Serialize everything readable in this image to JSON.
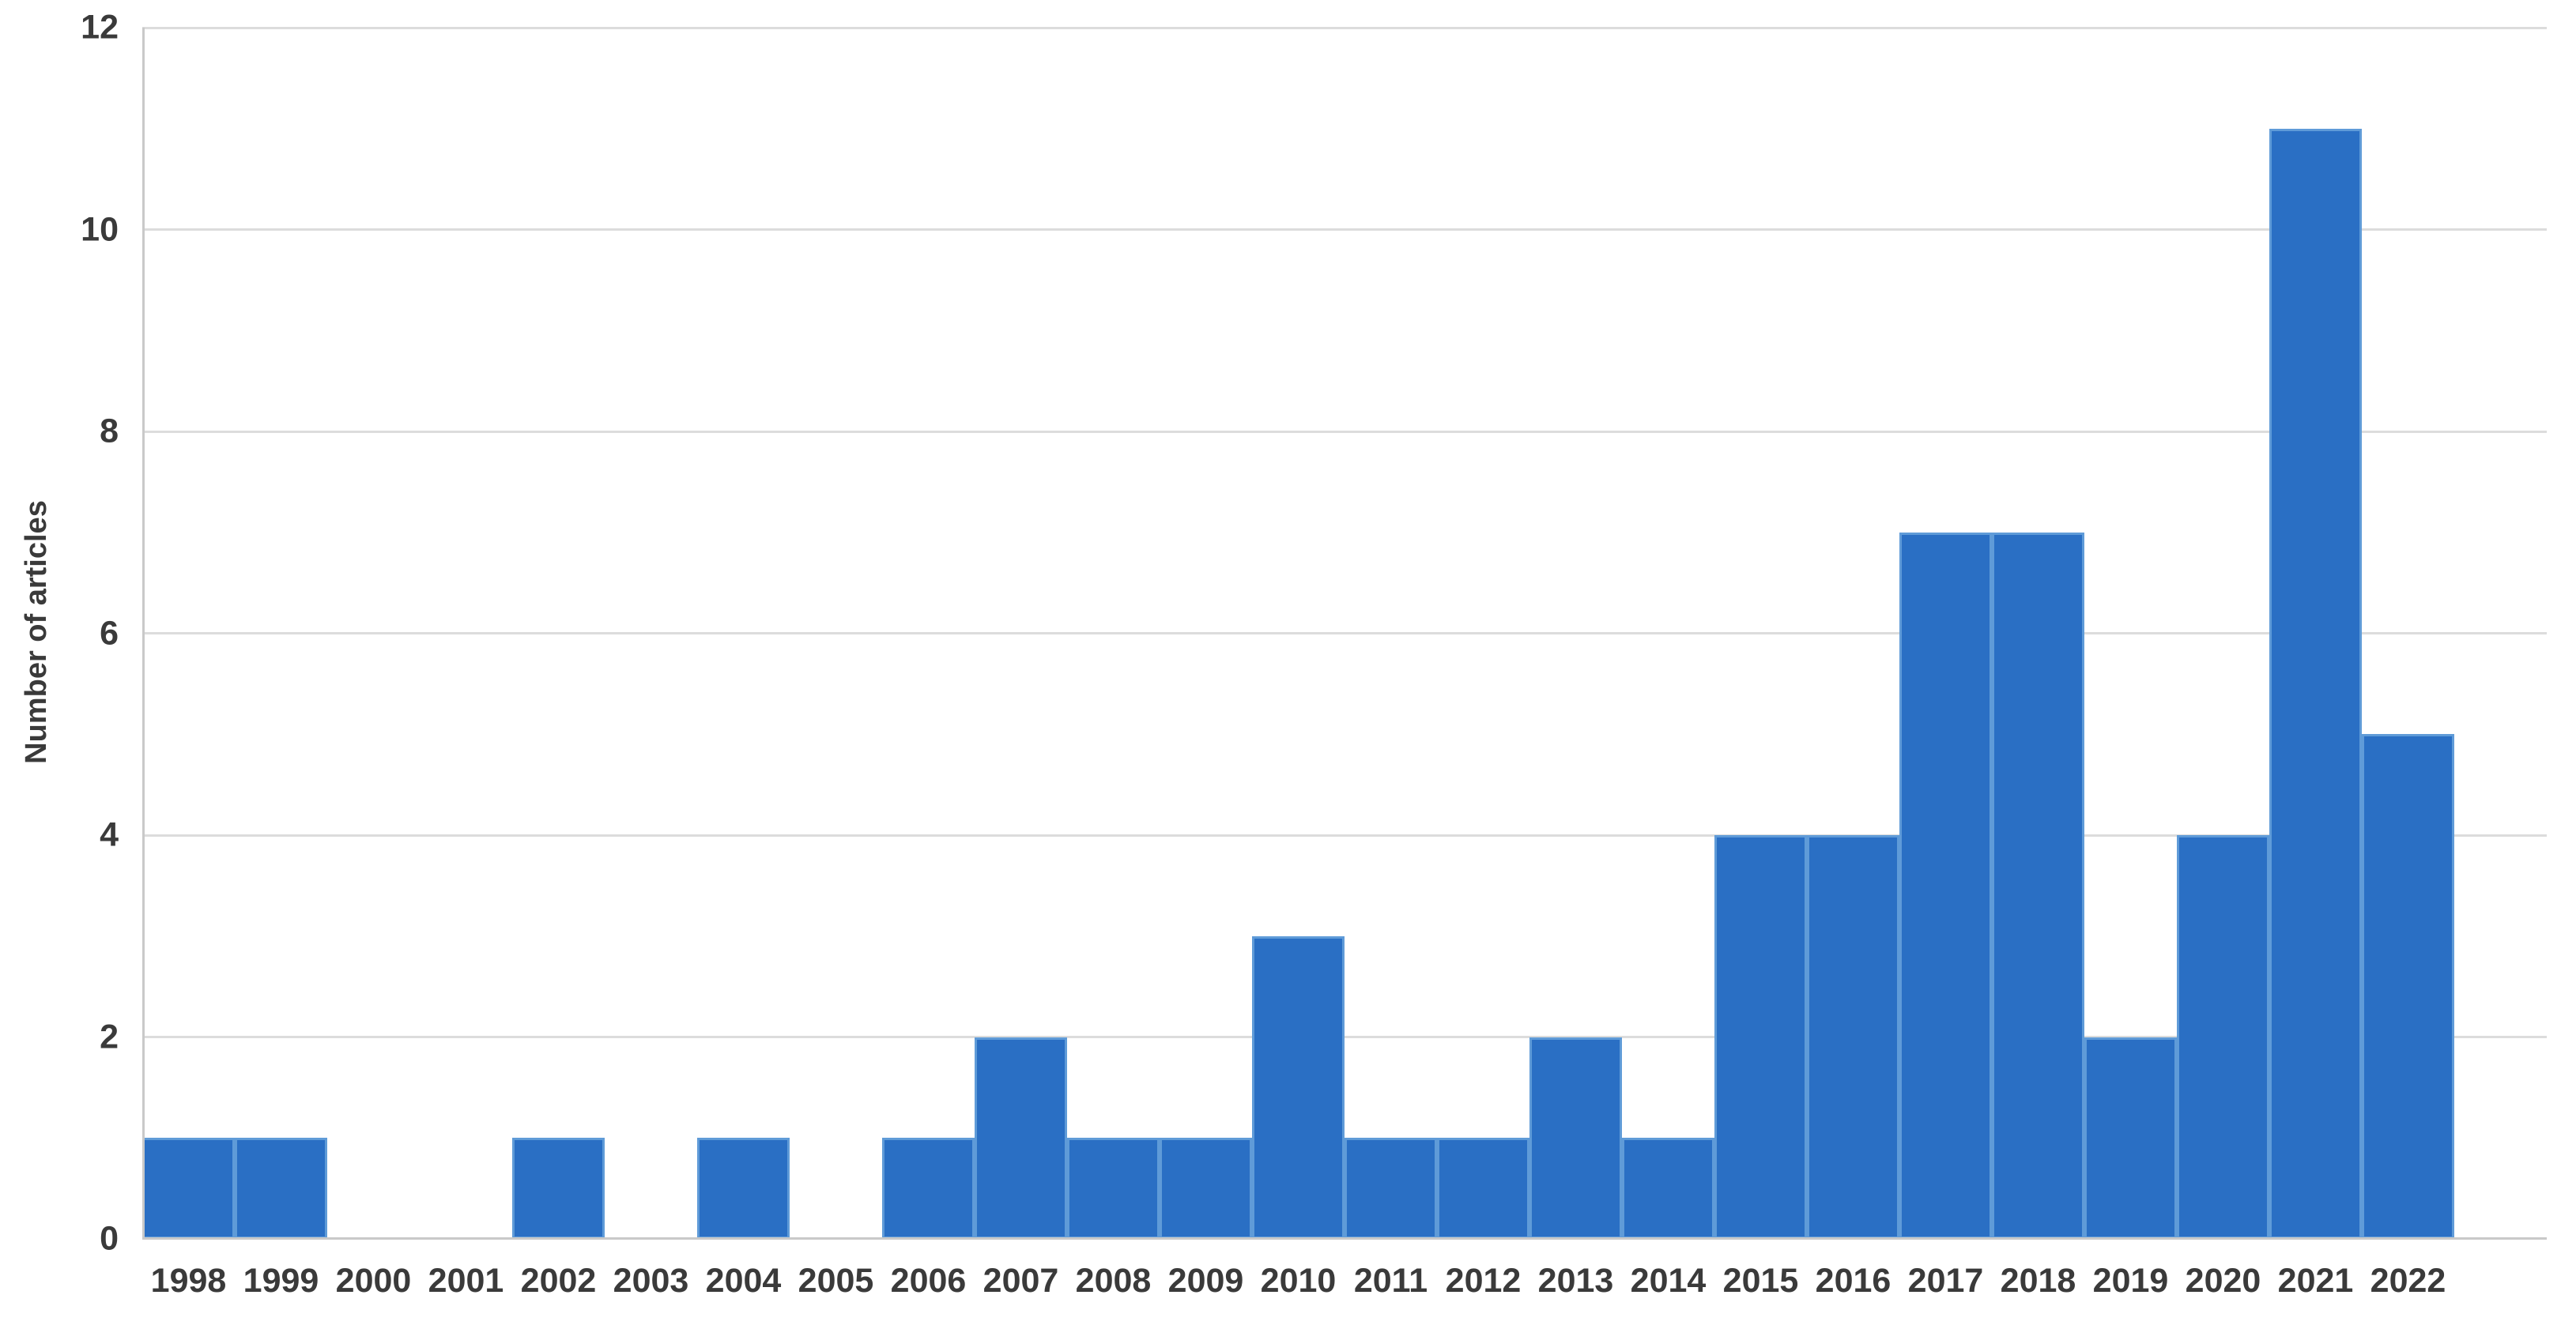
{
  "chart_data": {
    "type": "bar",
    "title": "",
    "categories": [
      "1998",
      "1999",
      "2000",
      "2001",
      "2002",
      "2003",
      "2004",
      "2005",
      "2006",
      "2007",
      "2008",
      "2009",
      "2010",
      "2011",
      "2012",
      "2013",
      "2014",
      "2015",
      "2016",
      "2017",
      "2018",
      "2019",
      "2020",
      "2021",
      "2022"
    ],
    "values": [
      1,
      1,
      0,
      0,
      1,
      0,
      1,
      0,
      1,
      2,
      1,
      1,
      3,
      1,
      1,
      2,
      1,
      4,
      4,
      7,
      7,
      2,
      4,
      11,
      5
    ],
    "xlabel": "",
    "ylabel": "Number of articles",
    "yticks": [
      0,
      2,
      4,
      6,
      8,
      10,
      12
    ],
    "ylim": [
      0,
      12
    ],
    "grid": "horizontal",
    "legend": "none",
    "bar_fill": "#2A6FC4",
    "bar_border": "#5F9BD8",
    "gridline_color": "#DCDCDC",
    "axis_line_color": "#C9C9C9",
    "label_color": "#3A3A3A"
  }
}
